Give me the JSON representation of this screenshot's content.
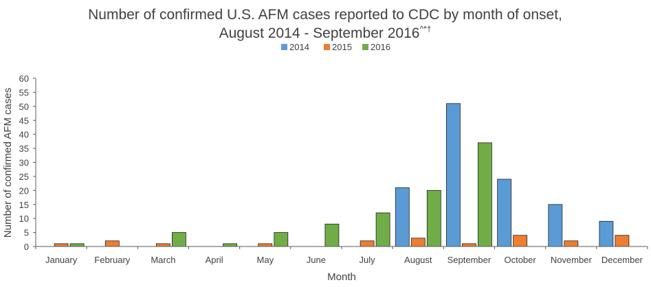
{
  "chart_data": {
    "type": "bar",
    "title_line1": "Number of confirmed U.S. AFM cases reported to CDC by month of onset,",
    "title_line2": "August 2014 - September 2016",
    "title_superscript": "^*†",
    "xlabel": "Month",
    "ylabel": "Number of confirmed AFM cases",
    "ylim": [
      0,
      60
    ],
    "yticks": [
      0,
      5,
      10,
      15,
      20,
      25,
      30,
      35,
      40,
      45,
      50,
      55,
      60
    ],
    "legend_position": "top-center",
    "grid": false,
    "categories": [
      "January",
      "February",
      "March",
      "April",
      "May",
      "June",
      "July",
      "August",
      "September",
      "October",
      "November",
      "December"
    ],
    "series": [
      {
        "name": "2014",
        "color": "#5B9BD5",
        "values": [
          null,
          null,
          null,
          null,
          null,
          null,
          null,
          21,
          51,
          24,
          15,
          9
        ]
      },
      {
        "name": "2015",
        "color": "#ED7D31",
        "values": [
          1,
          2,
          1,
          0,
          1,
          0,
          2,
          3,
          1,
          4,
          2,
          4
        ]
      },
      {
        "name": "2016",
        "color": "#70AD47",
        "values": [
          1,
          0,
          5,
          1,
          5,
          8,
          12,
          20,
          37,
          null,
          null,
          null
        ]
      }
    ]
  }
}
